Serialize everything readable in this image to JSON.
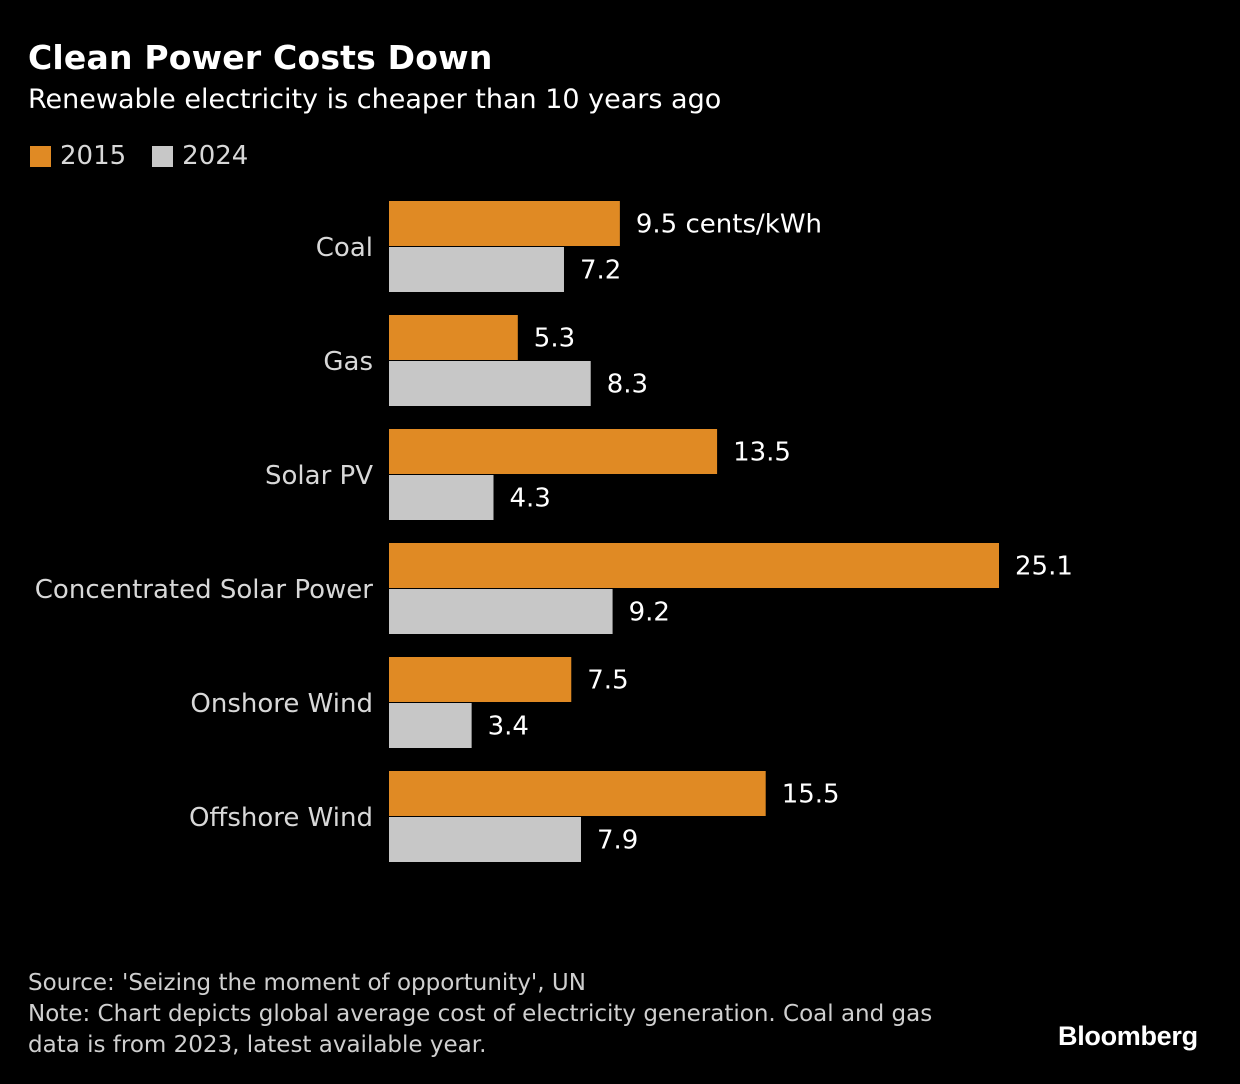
{
  "header": {
    "title": "Clean Power Costs Down",
    "subtitle": "Renewable electricity is cheaper than 10 years ago"
  },
  "legend": {
    "items": [
      {
        "label": "2015",
        "color": "#e08a24"
      },
      {
        "label": "2024",
        "color": "#c7c7c7"
      }
    ]
  },
  "chart_data": {
    "type": "bar",
    "orientation": "horizontal",
    "categories": [
      "Coal",
      "Gas",
      "Solar PV",
      "Concentrated Solar Power",
      "Onshore Wind",
      "Offshore Wind"
    ],
    "series": [
      {
        "name": "2015",
        "color": "#e08a24",
        "values": [
          9.5,
          5.3,
          13.5,
          25.1,
          7.5,
          15.5
        ]
      },
      {
        "name": "2024",
        "color": "#c7c7c7",
        "values": [
          7.2,
          8.3,
          4.3,
          9.2,
          3.4,
          7.9
        ]
      }
    ],
    "first_label_unit": " cents/kWh",
    "title": "Clean Power Costs Down",
    "subtitle": "Renewable electricity is cheaper than 10 years ago",
    "grid": false,
    "legend_position": "top-left"
  },
  "footer": {
    "source": "Source: 'Seizing the moment of opportunity', UN",
    "note": "Note: Chart depicts global average cost of electricity generation. Coal and gas data is from 2023, latest available year.",
    "brand": "Bloomberg"
  }
}
